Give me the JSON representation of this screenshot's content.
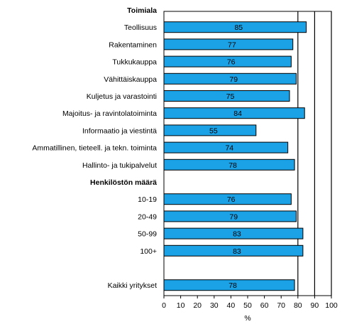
{
  "chart_data": {
    "type": "bar",
    "orientation": "horizontal",
    "title": "",
    "xlabel": "%",
    "ylabel": "",
    "xlim": [
      0,
      100
    ],
    "x_ticks": [
      0,
      10,
      20,
      30,
      40,
      50,
      60,
      70,
      80,
      90,
      100
    ],
    "vertical_gridlines_at": [
      80,
      90,
      100
    ],
    "legend": "none",
    "bar_color": "#1aa1e6",
    "bar_edge_color": "#000000",
    "rows": [
      {
        "kind": "group",
        "label": "Toimiala"
      },
      {
        "kind": "bar",
        "label": "Teollisuus",
        "value": 85
      },
      {
        "kind": "bar",
        "label": "Rakentaminen",
        "value": 77
      },
      {
        "kind": "bar",
        "label": "Tukkukauppa",
        "value": 76
      },
      {
        "kind": "bar",
        "label": "Vähittäiskauppa",
        "value": 79
      },
      {
        "kind": "bar",
        "label": "Kuljetus ja varastointi",
        "value": 75
      },
      {
        "kind": "bar",
        "label": "Majoitus- ja ravintolatoiminta",
        "value": 84
      },
      {
        "kind": "bar",
        "label": "Informaatio ja viestintä",
        "value": 55
      },
      {
        "kind": "bar",
        "label": "Ammatillinen, tieteell. ja tekn. toiminta",
        "value": 74
      },
      {
        "kind": "bar",
        "label": "Hallinto- ja tukipalvelut",
        "value": 78
      },
      {
        "kind": "group",
        "label": "Henkilöstön määrä"
      },
      {
        "kind": "bar",
        "label": "10-19",
        "value": 76
      },
      {
        "kind": "bar",
        "label": "20-49",
        "value": 79
      },
      {
        "kind": "bar",
        "label": "50-99",
        "value": 83
      },
      {
        "kind": "bar",
        "label": "100+",
        "value": 83
      },
      {
        "kind": "spacer"
      },
      {
        "kind": "bar",
        "label": "Kaikki yritykset",
        "value": 78
      }
    ]
  }
}
